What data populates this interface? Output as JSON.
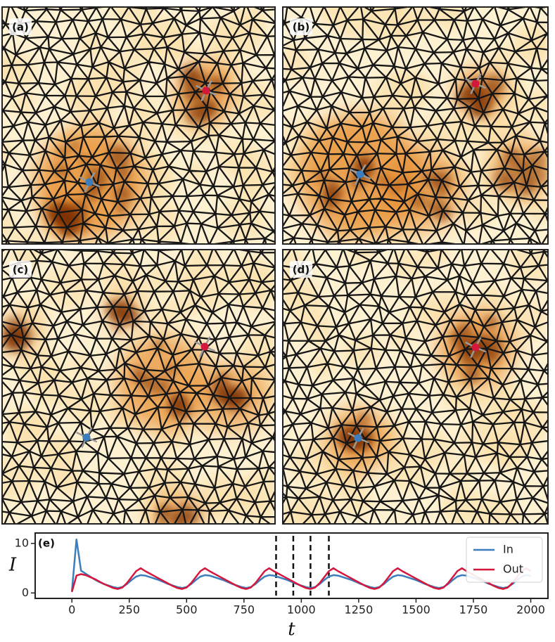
{
  "panels": [
    {
      "label": "(a)"
    },
    {
      "label": "(b)"
    },
    {
      "label": "(c)"
    },
    {
      "label": "(d)"
    }
  ],
  "chart_data": {
    "type": "line",
    "panel_label": "(e)",
    "x_label": "t",
    "y_label": "I",
    "x": [
      0,
      20,
      40,
      60,
      80,
      100,
      120,
      140,
      160,
      180,
      200,
      220,
      240,
      260,
      280,
      300,
      320,
      340,
      360,
      380,
      400,
      420,
      440,
      460,
      480,
      500,
      520,
      540,
      560,
      580,
      600,
      620,
      640,
      660,
      680,
      700,
      720,
      740,
      760,
      780,
      800,
      820,
      840,
      860,
      880,
      900,
      920,
      940,
      960,
      980,
      1000,
      1020,
      1040,
      1060,
      1080,
      1100,
      1120,
      1140,
      1160,
      1180,
      1200,
      1220,
      1240,
      1260,
      1280,
      1300,
      1320,
      1340,
      1360,
      1380,
      1400,
      1420,
      1440,
      1460,
      1480,
      1500,
      1520,
      1540,
      1560,
      1580,
      1600,
      1620,
      1640,
      1660,
      1680,
      1700,
      1720,
      1740,
      1760,
      1780,
      1800,
      1820,
      1840,
      1860,
      1880,
      1900,
      1920,
      1940,
      1960,
      1980,
      2000
    ],
    "series": [
      {
        "name": "In",
        "color": "#3b7dbd",
        "values": [
          0.3,
          10.8,
          4.5,
          3.9,
          3.3,
          2.7,
          2.2,
          1.8,
          1.5,
          1.2,
          1.0,
          1.2,
          1.8,
          2.6,
          3.3,
          3.6,
          3.5,
          3.2,
          2.9,
          2.6,
          2.2,
          1.8,
          1.5,
          1.2,
          1.0,
          1.2,
          1.8,
          2.6,
          3.3,
          3.6,
          3.5,
          3.2,
          2.9,
          2.6,
          2.2,
          1.8,
          1.5,
          1.2,
          1.0,
          1.2,
          1.8,
          2.6,
          3.3,
          3.6,
          3.5,
          3.2,
          2.9,
          2.6,
          2.2,
          1.8,
          1.5,
          1.2,
          1.0,
          1.2,
          1.8,
          2.6,
          3.3,
          3.6,
          3.5,
          3.2,
          2.9,
          2.6,
          2.2,
          1.8,
          1.5,
          1.2,
          1.0,
          1.2,
          1.8,
          2.6,
          3.3,
          3.6,
          3.5,
          3.2,
          2.9,
          2.6,
          2.2,
          1.8,
          1.5,
          1.2,
          1.0,
          1.2,
          1.8,
          2.6,
          3.3,
          3.6,
          3.5,
          3.2,
          2.9,
          2.6,
          2.2,
          1.8,
          1.5,
          1.2,
          1.0,
          1.2,
          1.8,
          2.6,
          3.3,
          3.6,
          3.5
        ]
      },
      {
        "name": "Out",
        "color": "#d6173c",
        "values": [
          0.2,
          3.5,
          3.8,
          3.6,
          3.2,
          2.8,
          2.3,
          1.8,
          1.4,
          1.0,
          0.8,
          1.1,
          2.0,
          3.2,
          4.4,
          5.0,
          4.4,
          3.9,
          3.4,
          2.9,
          2.4,
          1.9,
          1.4,
          1.0,
          0.8,
          1.1,
          2.0,
          3.2,
          4.4,
          5.0,
          4.4,
          3.9,
          3.4,
          2.9,
          2.4,
          1.9,
          1.4,
          1.0,
          0.8,
          1.1,
          2.0,
          3.2,
          4.4,
          5.0,
          4.4,
          3.9,
          3.4,
          2.9,
          2.4,
          1.9,
          1.4,
          1.0,
          0.8,
          1.1,
          2.0,
          3.2,
          4.4,
          5.0,
          4.4,
          3.9,
          3.4,
          2.9,
          2.4,
          1.9,
          1.4,
          1.0,
          0.8,
          1.1,
          2.0,
          3.2,
          4.4,
          5.0,
          4.4,
          3.9,
          3.4,
          2.9,
          2.4,
          1.9,
          1.4,
          1.0,
          0.8,
          1.1,
          2.0,
          3.2,
          4.4,
          5.0,
          4.4,
          3.9,
          3.4,
          2.9,
          2.4,
          1.9,
          1.4,
          1.0,
          0.8,
          1.1,
          2.0,
          3.2,
          4.4,
          5.0,
          4.4
        ]
      }
    ],
    "vlines": [
      890,
      965,
      1040,
      1120
    ],
    "xlim": [
      -160,
      2075
    ],
    "ylim": [
      -1.1,
      12.1
    ],
    "xticks": [
      0,
      250,
      500,
      750,
      1000,
      1250,
      1500,
      1750,
      2000
    ],
    "yticks": [
      0,
      10
    ],
    "legend": "upper right"
  }
}
